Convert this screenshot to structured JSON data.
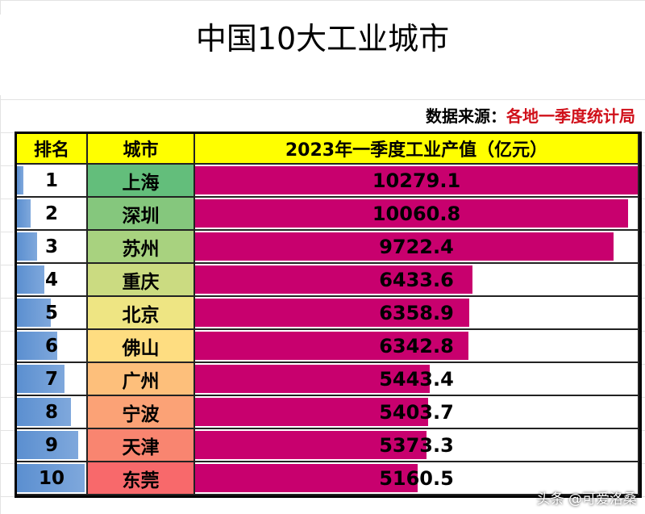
{
  "title": "中国10大工业城市",
  "source": {
    "label": "数据来源：",
    "value": "各地一季度统计局"
  },
  "table": {
    "header": [
      "排名",
      "城市",
      "2023年一季度工业产值（亿元）"
    ],
    "rows": [
      {
        "rank": 1,
        "city": "上海",
        "value": 10279.1
      },
      {
        "rank": 2,
        "city": "深圳",
        "value": 10060.8
      },
      {
        "rank": 3,
        "city": "苏州",
        "value": 9722.4
      },
      {
        "rank": 4,
        "city": "重庆",
        "value": 6433.6
      },
      {
        "rank": 5,
        "city": "北京",
        "value": 6358.9
      },
      {
        "rank": 6,
        "city": "佛山",
        "value": 6342.8
      },
      {
        "rank": 7,
        "city": "广州",
        "value": 5443.4
      },
      {
        "rank": 8,
        "city": "宁波",
        "value": 5403.7
      },
      {
        "rank": 9,
        "city": "天津",
        "value": 5373.3
      },
      {
        "rank": 10,
        "city": "东莞",
        "value": 5160.5
      }
    ]
  },
  "watermark": "头条 @可爱洛桑"
}
